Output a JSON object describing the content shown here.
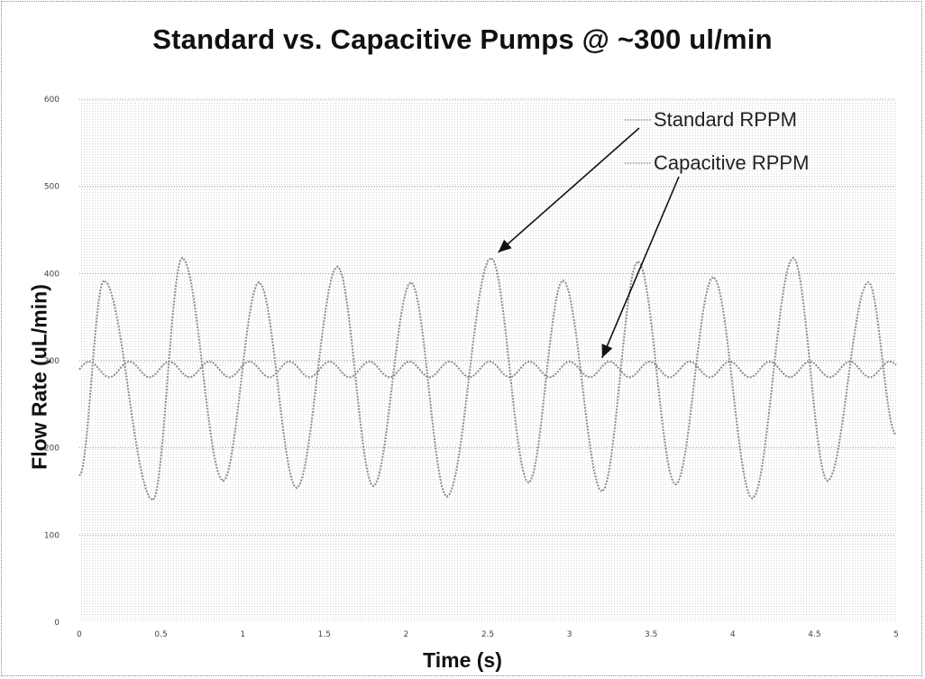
{
  "chart_data": {
    "type": "line",
    "title": "Standard vs. Capacitive Pumps @ ~300 ul/min",
    "xlabel": "Time (s)",
    "ylabel": "Flow Rate (uL/min)",
    "xlim": [
      0,
      5
    ],
    "ylim": [
      0,
      600
    ],
    "x_ticks": [
      "0",
      "0.5",
      "1",
      "1.5",
      "2",
      "2.5",
      "3",
      "3.5",
      "4",
      "4.5",
      "5"
    ],
    "y_ticks": [
      "0",
      "100",
      "200",
      "300",
      "400",
      "500",
      "600"
    ],
    "grid": "horizontal",
    "legend_placement": "top-right",
    "series": [
      {
        "name": "Standard RPPM",
        "color": "#8c8c8c",
        "period": 0.49,
        "peaks": [
          [
            0.15,
            392
          ],
          [
            0.63,
            418
          ],
          [
            1.1,
            390
          ],
          [
            1.58,
            408
          ],
          [
            2.03,
            390
          ],
          [
            2.52,
            418
          ],
          [
            2.96,
            392
          ],
          [
            3.42,
            414
          ],
          [
            3.88,
            396
          ],
          [
            4.37,
            418
          ],
          [
            4.83,
            390
          ]
        ],
        "troughs": [
          [
            0.45,
            140
          ],
          [
            0.88,
            162
          ],
          [
            1.33,
            154
          ],
          [
            1.8,
            156
          ],
          [
            2.25,
            144
          ],
          [
            2.75,
            160
          ],
          [
            3.2,
            150
          ],
          [
            3.65,
            158
          ],
          [
            4.12,
            142
          ],
          [
            4.58,
            162
          ]
        ],
        "start": [
          0,
          168
        ],
        "end": [
          5,
          215
        ]
      },
      {
        "name": "Capacitive RPPM",
        "color": "#8c8c8c",
        "mean": 290,
        "amplitude": 9,
        "period": 0.245
      }
    ],
    "annotations": [
      {
        "series": "Standard RPPM",
        "points_to": [
          2.52,
          418
        ]
      },
      {
        "series": "Capacitive RPPM",
        "points_to": [
          3.2,
          295
        ]
      }
    ]
  },
  "colors": {
    "gridline": "#9a9a9a",
    "line": "#8c8c8c",
    "arrow": "#111111",
    "text": "#111111"
  }
}
